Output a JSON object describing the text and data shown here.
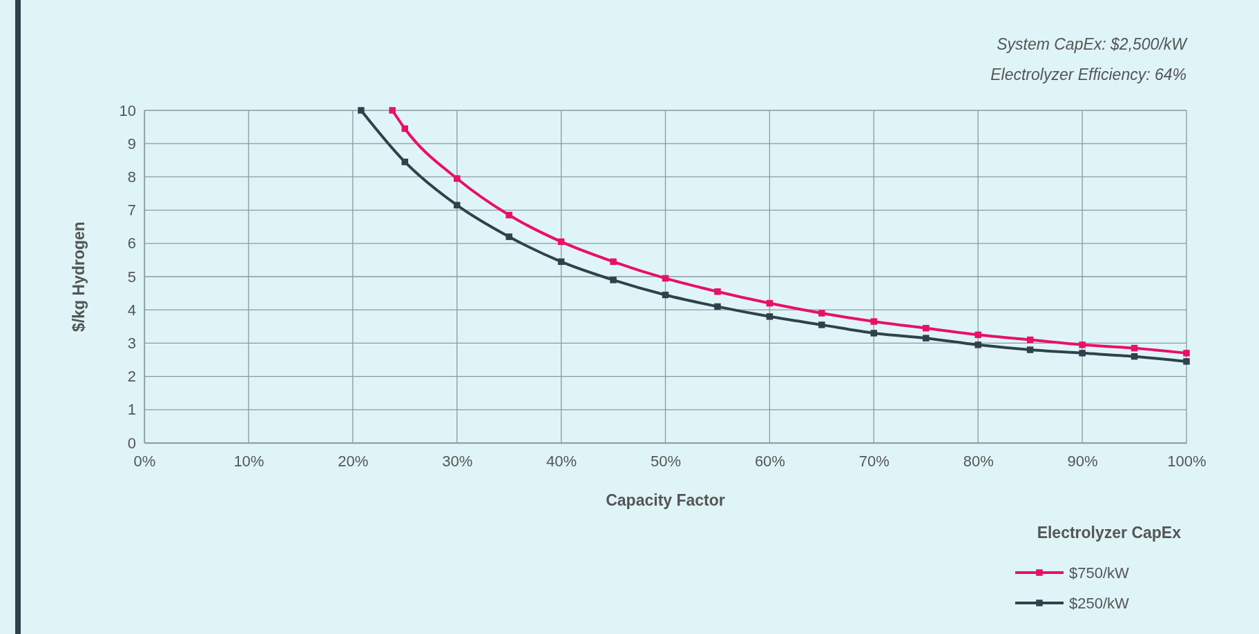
{
  "chart_data": {
    "type": "line",
    "xlabel": "Capacity Factor",
    "ylabel": "$/kg Hydrogen",
    "legend_title": "Electrolyzer CapEx",
    "annotations": [
      "System CapEx: $2,500/kW",
      "Electrolyzer Efficiency: 64%"
    ],
    "series": [
      {
        "name": "$750/kW",
        "color": "#e8106a",
        "x": [
          23.8,
          25,
          30,
          35,
          40,
          45,
          50,
          55,
          60,
          65,
          70,
          75,
          80,
          85,
          90,
          95,
          100
        ],
        "values": [
          10,
          9.45,
          7.95,
          6.85,
          6.05,
          5.45,
          4.95,
          4.55,
          4.2,
          3.9,
          3.65,
          3.45,
          3.25,
          3.1,
          2.95,
          2.85,
          2.7
        ]
      },
      {
        "name": "$250/kW",
        "color": "#2f424b",
        "x": [
          20.8,
          25,
          30,
          35,
          40,
          45,
          50,
          55,
          60,
          65,
          70,
          75,
          80,
          85,
          90,
          95,
          100
        ],
        "values": [
          10,
          8.45,
          7.15,
          6.2,
          5.45,
          4.9,
          4.45,
          4.1,
          3.8,
          3.55,
          3.3,
          3.15,
          2.95,
          2.8,
          2.7,
          2.6,
          2.45
        ]
      }
    ],
    "xlim": [
      0,
      100
    ],
    "xticks": [
      {
        "value": 0,
        "label": "0%"
      },
      {
        "value": 10,
        "label": "10%"
      },
      {
        "value": 20,
        "label": "20%"
      },
      {
        "value": 30,
        "label": "30%"
      },
      {
        "value": 40,
        "label": "40%"
      },
      {
        "value": 50,
        "label": "50%"
      },
      {
        "value": 60,
        "label": "60%"
      },
      {
        "value": 70,
        "label": "70%"
      },
      {
        "value": 80,
        "label": "80%"
      },
      {
        "value": 90,
        "label": "90%"
      },
      {
        "value": 100,
        "label": "100%"
      }
    ],
    "ylim": [
      0,
      10
    ],
    "yticks": [
      0,
      1,
      2,
      3,
      4,
      5,
      6,
      7,
      8,
      9,
      10
    ],
    "grid": true,
    "legend": "bottom right",
    "marker": "square",
    "line_style": "solid"
  }
}
